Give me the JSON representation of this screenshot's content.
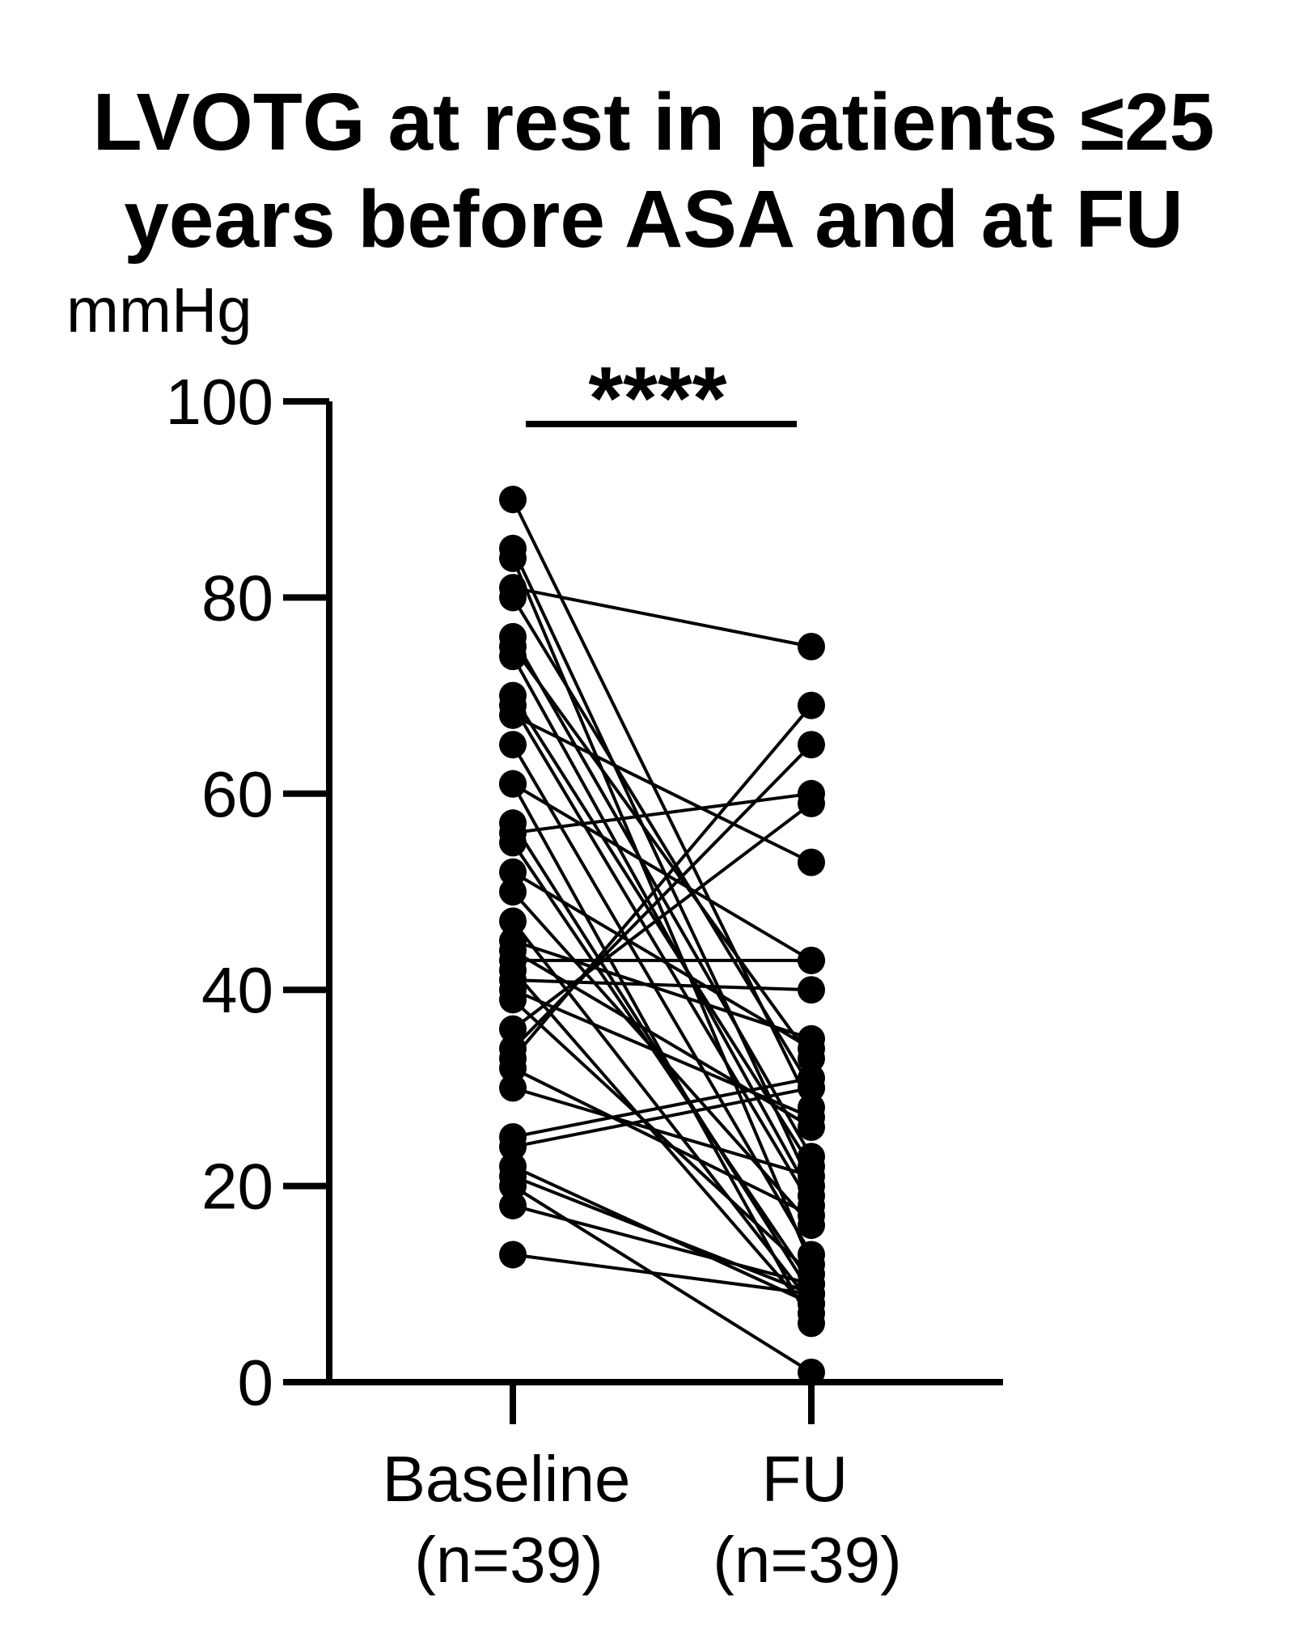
{
  "chart_data": {
    "type": "line",
    "title_lines": [
      "LVOTG at rest in patients ≤25",
      "years before ASA and at FU"
    ],
    "ylabel": "mmHg",
    "xlabel": "",
    "ylim": [
      0,
      100
    ],
    "yticks": [
      0,
      20,
      40,
      60,
      80,
      100
    ],
    "ytick_labels": [
      "0",
      "20",
      "40",
      "60",
      "80",
      "100"
    ],
    "categories": [
      {
        "label": "Baseline",
        "n_label": "(n=39)"
      },
      {
        "label": "FU",
        "n_label": "(n=39)"
      }
    ],
    "significance": "****",
    "color": "#000000",
    "grid": false,
    "legend": "none",
    "pairs": [
      [
        90,
        28
      ],
      [
        85,
        20
      ],
      [
        84,
        12
      ],
      [
        81,
        75
      ],
      [
        80,
        30
      ],
      [
        76,
        23
      ],
      [
        75,
        33
      ],
      [
        74,
        19
      ],
      [
        70,
        22
      ],
      [
        69,
        18
      ],
      [
        68,
        53
      ],
      [
        65,
        13
      ],
      [
        61,
        43
      ],
      [
        57,
        9
      ],
      [
        56,
        60
      ],
      [
        55,
        10
      ],
      [
        52,
        34
      ],
      [
        50,
        16
      ],
      [
        47,
        8
      ],
      [
        45,
        35
      ],
      [
        44,
        26
      ],
      [
        43,
        43
      ],
      [
        42,
        7
      ],
      [
        41,
        40
      ],
      [
        40,
        27
      ],
      [
        39,
        11
      ],
      [
        36,
        59
      ],
      [
        34,
        65
      ],
      [
        33,
        69
      ],
      [
        32,
        17
      ],
      [
        30,
        21
      ],
      [
        25,
        31
      ],
      [
        24,
        30
      ],
      [
        22,
        8
      ],
      [
        21,
        9
      ],
      [
        20,
        1
      ],
      [
        18,
        10
      ],
      [
        13,
        9
      ],
      [
        61,
        6
      ]
    ]
  }
}
